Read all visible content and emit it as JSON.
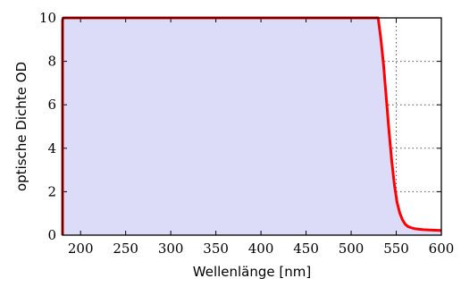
{
  "chart_data": {
    "type": "area",
    "xlabel": "Wellenlänge [nm]",
    "ylabel": "optische Dichte OD",
    "xlim": [
      180,
      600
    ],
    "ylim": [
      0,
      10
    ],
    "x_ticks": [
      200,
      250,
      300,
      350,
      400,
      450,
      500,
      550,
      600
    ],
    "y_ticks": [
      0,
      2,
      4,
      6,
      8,
      10
    ],
    "grid": true,
    "fill_color": "#dcdcf8",
    "line_color": "#ff0000",
    "series": [
      {
        "x": [
          180,
          180,
          181,
          200,
          250,
          300,
          350,
          400,
          450,
          500,
          530,
          533,
          536,
          539,
          542,
          545,
          548,
          551,
          554,
          557,
          560,
          563,
          566,
          570,
          575,
          580,
          590,
          600
        ],
        "y": [
          0,
          9.9,
          10,
          10,
          10,
          10,
          10,
          10,
          10,
          10,
          10,
          9.0,
          7.8,
          6.3,
          4.8,
          3.4,
          2.3,
          1.5,
          1.0,
          0.7,
          0.5,
          0.4,
          0.35,
          0.3,
          0.27,
          0.25,
          0.23,
          0.22
        ]
      }
    ]
  }
}
